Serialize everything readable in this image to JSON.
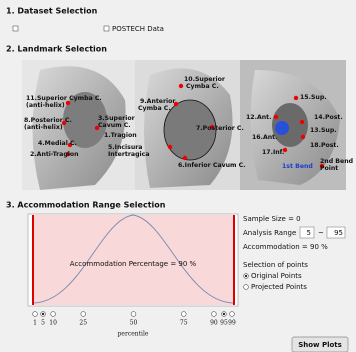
{
  "dataset": {
    "title": "1. Dataset Selection",
    "option": "POSTECH Data"
  },
  "landmark": {
    "title": "2. Landmark Selection",
    "labels": [
      "11.Superior Cymba C.",
      "(anti-helix)",
      "8.Posterior C.",
      "(anti-helix)",
      "4.Medial C.",
      "2.Anti-Tragion",
      "10.Superior",
      "Cymba C.",
      "9.Anterior",
      "Cymba C.",
      "3.Superior",
      "Cavum C.",
      "1.Tragion",
      "5.Incisura",
      "Intertragica",
      "7.Posterior C.",
      "6.Inferior Cavum C.",
      "15.Sup.",
      "12.Ant.",
      "14.Post.",
      "13.Sup.",
      "16.Ant.",
      "18.Post.",
      "17.Inf.",
      "1st Bend",
      "2nd Bend",
      "Point"
    ]
  },
  "accommodation": {
    "title": "3. Accommodation Range Selection",
    "plot_label": "Accommodation Percentage = 90 %",
    "percentiles": [
      1,
      5,
      10,
      25,
      50,
      75,
      90,
      95,
      99
    ],
    "axis_label": "percentile",
    "sample_size": "Sample Size = 0",
    "analysis_range": "Analysis Range",
    "range_from": "5",
    "range_sep": "~",
    "range_to": "95",
    "accommodation": "Accommodation = 90 %",
    "selection_title": "Selection of points",
    "options": [
      "Original Points",
      "Projected Points"
    ]
  },
  "button": "Show Plots"
}
